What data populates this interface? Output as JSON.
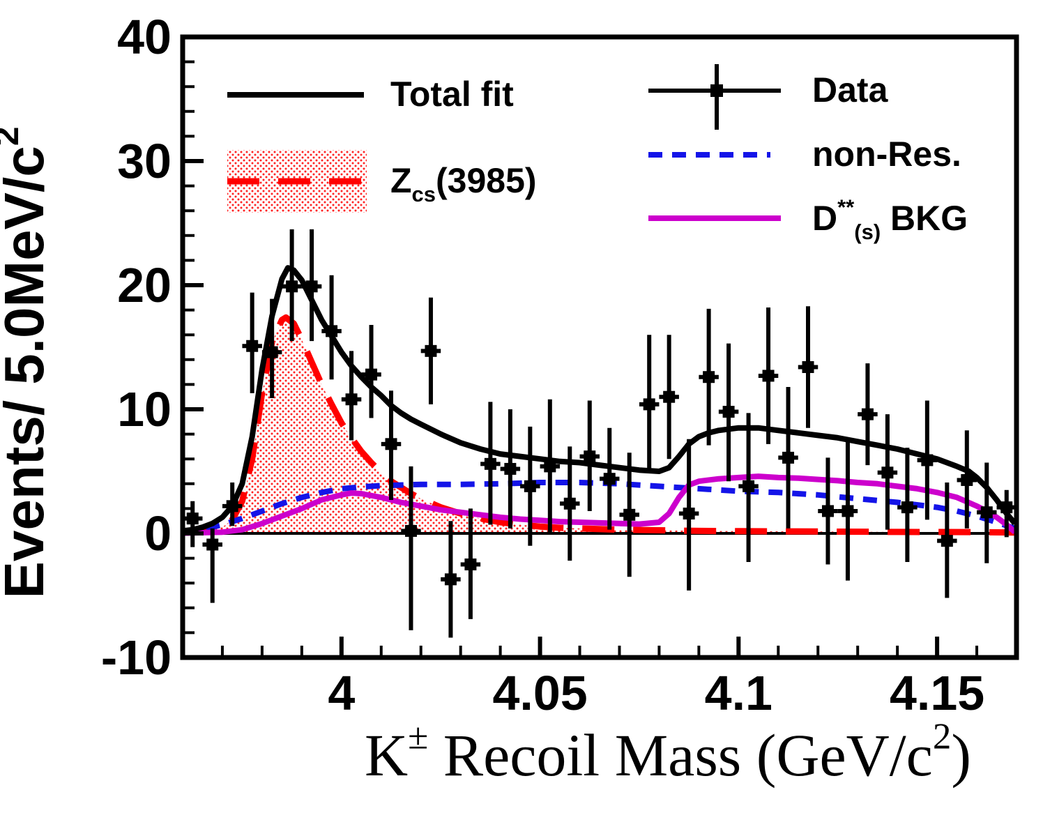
{
  "figure": {
    "background": "#ffffff"
  },
  "chart_data": {
    "type": "histogram-fit",
    "title": "",
    "ylabel_parts": [
      {
        "t": "Events/ 5.0MeV/c"
      },
      {
        "t": "2",
        "sup": true
      }
    ],
    "xlabel_parts": [
      {
        "t": "K"
      },
      {
        "t": "±",
        "sup": true
      },
      {
        "t": " Recoil Mass (GeV/c"
      },
      {
        "t": "2",
        "sup": true
      },
      {
        "t": ")"
      }
    ],
    "xlim": [
      3.96,
      4.17
    ],
    "ylim": [
      -10,
      40
    ],
    "bin_width_gev": 0.005,
    "grid": false,
    "x_major_ticks": [
      {
        "v": 4.0,
        "label": "4"
      },
      {
        "v": 4.05,
        "label": "4.05"
      },
      {
        "v": 4.1,
        "label": "4.1"
      },
      {
        "v": 4.15,
        "label": "4.15"
      }
    ],
    "x_minor_step": 0.01,
    "y_major_ticks": [
      {
        "v": 40,
        "label": "40"
      },
      {
        "v": 30,
        "label": "30"
      },
      {
        "v": 20,
        "label": "20"
      },
      {
        "v": 10,
        "label": "10"
      },
      {
        "v": 0,
        "label": "0"
      },
      {
        "v": -10,
        "label": "-10"
      }
    ],
    "y_minor_step": 2,
    "colors": {
      "data": "#000000",
      "total_fit": "#000000",
      "zcs": "#ff0000",
      "non_res": "#1414e8",
      "ds_bkg": "#cc00cc"
    },
    "legend": {
      "total_fit": {
        "label": "Total fit",
        "style": "solid-black-line"
      },
      "zcs": {
        "label_parts": [
          {
            "t": "Z"
          },
          {
            "t": "cs",
            "sub": true
          },
          {
            "t": "(3985)"
          }
        ],
        "style": "red-long-dash-on-red-dot-hatch"
      },
      "data": {
        "label": "Data",
        "style": "black-square-marker-with-error-bars"
      },
      "non_res": {
        "label": "non-Res.",
        "style": "blue-dashed-line"
      },
      "ds_bkg": {
        "label_parts": [
          {
            "t": "D"
          },
          {
            "t": "**",
            "sup": true
          },
          {
            "t": "(s)",
            "sub": true
          },
          {
            "t": " BKG"
          }
        ],
        "style": "magenta-solid-line"
      }
    },
    "data_points": [
      {
        "m": 3.9625,
        "v": 1.2,
        "eu": 1.4,
        "ed": 2.3
      },
      {
        "m": 3.9675,
        "v": -0.9,
        "eu": 1.3,
        "ed": 4.7
      },
      {
        "m": 3.9725,
        "v": 2.2,
        "eu": 1.9,
        "ed": 1.6
      },
      {
        "m": 3.9775,
        "v": 15.1,
        "eu": 4.3,
        "ed": 3.8
      },
      {
        "m": 3.9825,
        "v": 14.6,
        "eu": 4.3,
        "ed": 3.7
      },
      {
        "m": 3.9875,
        "v": 19.9,
        "eu": 4.6,
        "ed": 4.4
      },
      {
        "m": 3.9925,
        "v": 19.9,
        "eu": 4.6,
        "ed": 4.4
      },
      {
        "m": 3.9975,
        "v": 16.3,
        "eu": 4.5,
        "ed": 3.9
      },
      {
        "m": 4.0025,
        "v": 10.8,
        "eu": 3.9,
        "ed": 3.3
      },
      {
        "m": 4.0075,
        "v": 12.8,
        "eu": 4.0,
        "ed": 3.5
      },
      {
        "m": 4.0125,
        "v": 7.2,
        "eu": 4.3,
        "ed": 4.5
      },
      {
        "m": 4.0175,
        "v": 0.2,
        "eu": 5.2,
        "ed": 8.0
      },
      {
        "m": 4.0225,
        "v": 14.7,
        "eu": 4.3,
        "ed": 4.3
      },
      {
        "m": 4.0275,
        "v": -3.7,
        "eu": 4.7,
        "ed": 4.7
      },
      {
        "m": 4.0325,
        "v": -2.5,
        "eu": 4.5,
        "ed": 4.4
      },
      {
        "m": 4.0375,
        "v": 5.6,
        "eu": 5.0,
        "ed": 4.9
      },
      {
        "m": 4.0425,
        "v": 5.2,
        "eu": 4.8,
        "ed": 4.8
      },
      {
        "m": 4.0475,
        "v": 3.8,
        "eu": 4.8,
        "ed": 4.8
      },
      {
        "m": 4.0525,
        "v": 5.4,
        "eu": 5.4,
        "ed": 5.4
      },
      {
        "m": 4.0575,
        "v": 2.4,
        "eu": 4.6,
        "ed": 4.6
      },
      {
        "m": 4.0625,
        "v": 6.2,
        "eu": 4.5,
        "ed": 4.4
      },
      {
        "m": 4.0675,
        "v": 4.4,
        "eu": 4.1,
        "ed": 4.1
      },
      {
        "m": 4.0725,
        "v": 1.5,
        "eu": 5.0,
        "ed": 5.0
      },
      {
        "m": 4.0775,
        "v": 10.4,
        "eu": 5.6,
        "ed": 5.5
      },
      {
        "m": 4.0825,
        "v": 11.0,
        "eu": 5.0,
        "ed": 5.0
      },
      {
        "m": 4.0875,
        "v": 1.6,
        "eu": 6.0,
        "ed": 6.2
      },
      {
        "m": 4.0925,
        "v": 12.6,
        "eu": 5.5,
        "ed": 5.5
      },
      {
        "m": 4.0975,
        "v": 9.8,
        "eu": 5.5,
        "ed": 5.6
      },
      {
        "m": 4.1025,
        "v": 3.8,
        "eu": 5.9,
        "ed": 6.1
      },
      {
        "m": 4.1075,
        "v": 12.7,
        "eu": 5.5,
        "ed": 5.5
      },
      {
        "m": 4.1125,
        "v": 6.1,
        "eu": 5.7,
        "ed": 5.7
      },
      {
        "m": 4.1175,
        "v": 13.4,
        "eu": 4.9,
        "ed": 4.9
      },
      {
        "m": 4.1225,
        "v": 1.8,
        "eu": 4.3,
        "ed": 4.3
      },
      {
        "m": 4.1275,
        "v": 1.8,
        "eu": 5.6,
        "ed": 5.6
      },
      {
        "m": 4.1325,
        "v": 9.6,
        "eu": 4.1,
        "ed": 4.1
      },
      {
        "m": 4.1375,
        "v": 4.9,
        "eu": 4.7,
        "ed": 4.6
      },
      {
        "m": 4.1425,
        "v": 2.1,
        "eu": 4.8,
        "ed": 4.4
      },
      {
        "m": 4.1475,
        "v": 5.9,
        "eu": 4.8,
        "ed": 4.8
      },
      {
        "m": 4.1525,
        "v": -0.6,
        "eu": 4.7,
        "ed": 4.6
      },
      {
        "m": 4.1575,
        "v": 4.3,
        "eu": 4.0,
        "ed": 3.9
      },
      {
        "m": 4.1625,
        "v": 1.7,
        "eu": 4.0,
        "ed": 4.1
      },
      {
        "m": 4.1675,
        "v": 2.1,
        "eu": 1.4,
        "ed": 2.4
      }
    ],
    "curves": {
      "total_fit": [
        [
          3.96,
          0.2
        ],
        [
          3.9625,
          0.3
        ],
        [
          3.965,
          0.5
        ],
        [
          3.9675,
          0.8
        ],
        [
          3.97,
          1.3
        ],
        [
          3.9725,
          2.2
        ],
        [
          3.975,
          4.0
        ],
        [
          3.9775,
          7.8
        ],
        [
          3.98,
          13.2
        ],
        [
          3.9825,
          17.5
        ],
        [
          3.985,
          20.5
        ],
        [
          3.9865,
          21.4
        ],
        [
          3.988,
          21.2
        ],
        [
          3.99,
          20.4
        ],
        [
          3.9925,
          18.8
        ],
        [
          3.995,
          17.2
        ],
        [
          3.9975,
          15.9
        ],
        [
          4.0,
          14.6
        ],
        [
          4.0025,
          13.5
        ],
        [
          4.005,
          12.6
        ],
        [
          4.0075,
          11.8
        ],
        [
          4.01,
          11.1
        ],
        [
          4.0125,
          10.3
        ],
        [
          4.015,
          9.7
        ],
        [
          4.0175,
          9.2
        ],
        [
          4.02,
          8.8
        ],
        [
          4.025,
          8.0
        ],
        [
          4.03,
          7.3
        ],
        [
          4.035,
          6.8
        ],
        [
          4.04,
          6.4
        ],
        [
          4.045,
          6.2
        ],
        [
          4.05,
          6.0
        ],
        [
          4.055,
          5.8
        ],
        [
          4.06,
          5.7
        ],
        [
          4.065,
          5.5
        ],
        [
          4.07,
          5.3
        ],
        [
          4.075,
          5.1
        ],
        [
          4.08,
          5.0
        ],
        [
          4.0825,
          5.3
        ],
        [
          4.085,
          6.2
        ],
        [
          4.0875,
          7.2
        ],
        [
          4.09,
          7.8
        ],
        [
          4.0925,
          8.1
        ],
        [
          4.095,
          8.3
        ],
        [
          4.1,
          8.5
        ],
        [
          4.105,
          8.5
        ],
        [
          4.11,
          8.3
        ],
        [
          4.115,
          8.1
        ],
        [
          4.12,
          7.9
        ],
        [
          4.125,
          7.7
        ],
        [
          4.13,
          7.4
        ],
        [
          4.135,
          7.1
        ],
        [
          4.14,
          6.8
        ],
        [
          4.145,
          6.4
        ],
        [
          4.15,
          6.0
        ],
        [
          4.155,
          5.4
        ],
        [
          4.158,
          5.0
        ],
        [
          4.16,
          4.5
        ],
        [
          4.1625,
          3.7
        ],
        [
          4.165,
          2.7
        ],
        [
          4.1675,
          1.6
        ],
        [
          4.1696,
          0.8
        ]
      ],
      "zcs": [
        [
          3.96,
          0.05
        ],
        [
          3.965,
          0.15
        ],
        [
          3.97,
          0.5
        ],
        [
          3.9725,
          1.1
        ],
        [
          3.975,
          2.6
        ],
        [
          3.9775,
          6.0
        ],
        [
          3.98,
          11.3
        ],
        [
          3.9825,
          15.4
        ],
        [
          3.985,
          17.2
        ],
        [
          3.986,
          17.4
        ],
        [
          3.988,
          16.9
        ],
        [
          3.99,
          15.6
        ],
        [
          3.9925,
          13.8
        ],
        [
          3.995,
          12.0
        ],
        [
          3.9975,
          10.4
        ],
        [
          4.0,
          8.9
        ],
        [
          4.0025,
          7.7
        ],
        [
          4.005,
          6.6
        ],
        [
          4.0075,
          5.7
        ],
        [
          4.01,
          4.9
        ],
        [
          4.0125,
          4.2
        ],
        [
          4.015,
          3.7
        ],
        [
          4.0175,
          3.2
        ],
        [
          4.02,
          2.8
        ],
        [
          4.025,
          2.1
        ],
        [
          4.03,
          1.6
        ],
        [
          4.035,
          1.2
        ],
        [
          4.04,
          0.9
        ],
        [
          4.045,
          0.7
        ],
        [
          4.05,
          0.55
        ],
        [
          4.055,
          0.45
        ],
        [
          4.06,
          0.4
        ],
        [
          4.07,
          0.3
        ],
        [
          4.08,
          0.25
        ],
        [
          4.09,
          0.2
        ],
        [
          4.1,
          0.18
        ],
        [
          4.12,
          0.15
        ],
        [
          4.14,
          0.12
        ],
        [
          4.16,
          0.1
        ],
        [
          4.1696,
          0.07
        ]
      ],
      "non_res": [
        [
          3.96,
          0.1
        ],
        [
          3.965,
          0.3
        ],
        [
          3.97,
          0.7
        ],
        [
          3.975,
          1.2
        ],
        [
          3.98,
          1.8
        ],
        [
          3.985,
          2.4
        ],
        [
          3.99,
          2.9
        ],
        [
          3.995,
          3.3
        ],
        [
          4.0,
          3.6
        ],
        [
          4.005,
          3.75
        ],
        [
          4.01,
          3.85
        ],
        [
          4.02,
          3.95
        ],
        [
          4.03,
          3.95
        ],
        [
          4.04,
          4.0
        ],
        [
          4.05,
          4.1
        ],
        [
          4.06,
          4.1
        ],
        [
          4.07,
          4.0
        ],
        [
          4.08,
          3.8
        ],
        [
          4.09,
          3.6
        ],
        [
          4.1,
          3.4
        ],
        [
          4.11,
          3.3
        ],
        [
          4.12,
          3.1
        ],
        [
          4.13,
          2.8
        ],
        [
          4.14,
          2.5
        ],
        [
          4.15,
          2.1
        ],
        [
          4.155,
          1.8
        ],
        [
          4.16,
          1.4
        ],
        [
          4.165,
          0.9
        ],
        [
          4.1696,
          0.4
        ]
      ],
      "ds_bkg": [
        [
          3.96,
          0.02
        ],
        [
          3.97,
          0.1
        ],
        [
          3.975,
          0.3
        ],
        [
          3.98,
          0.8
        ],
        [
          3.985,
          1.4
        ],
        [
          3.99,
          2.0
        ],
        [
          3.995,
          2.7
        ],
        [
          4.0,
          3.1
        ],
        [
          4.0025,
          3.25
        ],
        [
          4.005,
          3.2
        ],
        [
          4.01,
          2.9
        ],
        [
          4.015,
          2.5
        ],
        [
          4.02,
          2.2
        ],
        [
          4.025,
          1.9
        ],
        [
          4.03,
          1.7
        ],
        [
          4.035,
          1.5
        ],
        [
          4.04,
          1.3
        ],
        [
          4.045,
          1.15
        ],
        [
          4.05,
          1.05
        ],
        [
          4.055,
          0.95
        ],
        [
          4.06,
          0.9
        ],
        [
          4.065,
          0.85
        ],
        [
          4.07,
          0.8
        ],
        [
          4.075,
          0.75
        ],
        [
          4.08,
          0.9
        ],
        [
          4.0825,
          1.6
        ],
        [
          4.085,
          2.9
        ],
        [
          4.0875,
          3.9
        ],
        [
          4.09,
          4.2
        ],
        [
          4.095,
          4.4
        ],
        [
          4.1,
          4.5
        ],
        [
          4.105,
          4.6
        ],
        [
          4.11,
          4.5
        ],
        [
          4.115,
          4.45
        ],
        [
          4.12,
          4.35
        ],
        [
          4.125,
          4.25
        ],
        [
          4.13,
          4.1
        ],
        [
          4.135,
          4.0
        ],
        [
          4.14,
          3.8
        ],
        [
          4.145,
          3.6
        ],
        [
          4.15,
          3.3
        ],
        [
          4.155,
          2.9
        ],
        [
          4.16,
          2.2
        ],
        [
          4.1625,
          1.8
        ],
        [
          4.165,
          1.3
        ],
        [
          4.1675,
          0.7
        ],
        [
          4.1696,
          0.1
        ]
      ]
    }
  }
}
